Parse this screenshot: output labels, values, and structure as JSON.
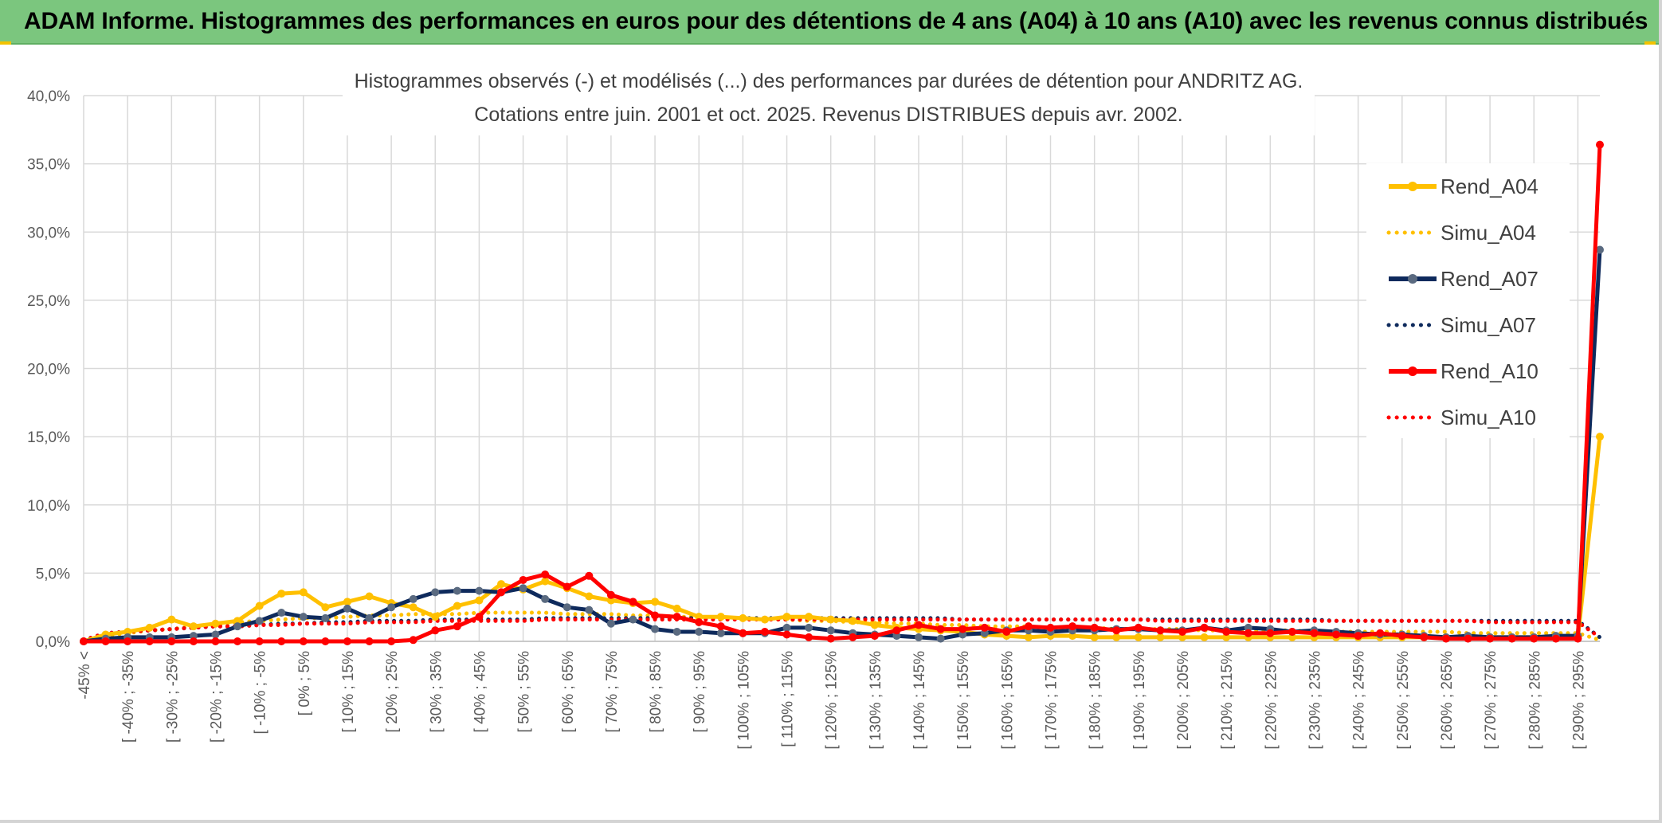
{
  "banner": {
    "title": "ADAM Informe. Histogrammes des performances en euros pour des détentions de 4 ans (A04) à 10 ans (A10) avec les revenus connus distribués"
  },
  "colors": {
    "banner_bg": "#7bc67e",
    "A04": "#ffc000",
    "A07": "#0e2a5c",
    "A07_marker": "#5a6a80",
    "A10": "#ff0000"
  },
  "chart_data": {
    "type": "line",
    "title": "Histogrammes observés (-) et modélisés (...) des performances par durées de détention pour ANDRITZ AG.",
    "subtitle": "Cotations entre juin. 2001 et oct. 2025. Revenus DISTRIBUES depuis avr. 2002.",
    "xlabel": "",
    "ylabel": "",
    "ylim": [
      0,
      40
    ],
    "y_ticks": [
      "0,0%",
      "5,0%",
      "10,0%",
      "15,0%",
      "20,0%",
      "25,0%",
      "30,0%",
      "35,0%",
      "40,0%"
    ],
    "grid": true,
    "legend_position": "right",
    "x_labels": [
      "-45% <",
      "[ -40% ; -35%",
      "[ -30% ; -25%",
      "[ -20% ; -15%",
      "[ -10% ; -5%",
      "[ 0% ; 5%",
      "[ 10% ; 15%",
      "[ 20% ; 25%",
      "[ 30% ; 35%",
      "[ 40% ; 45%",
      "[ 50% ; 55%",
      "[ 60% ; 65%",
      "[ 70% ; 75%",
      "[ 80% ; 85%",
      "[ 90% ; 95%",
      "[ 100% ; 105%",
      "[ 110% ; 115%",
      "[ 120% ; 125%",
      "[ 130% ; 135%",
      "[ 140% ; 145%",
      "[ 150% ; 155%",
      "[ 160% ; 165%",
      "[ 170% ; 175%",
      "[ 180% ; 185%",
      "[ 190% ; 195%",
      "[ 200% ; 205%",
      "[ 210% ; 215%",
      "[ 220% ; 225%",
      "[ 230% ; 235%",
      "[ 240% ; 245%",
      "[ 250% ; 255%",
      "[ 260% ; 265%",
      "[ 270% ; 275%",
      "[ 280% ; 285%",
      "[ 290% ; 295%"
    ],
    "series": [
      {
        "name": "Rend_A04",
        "style": "solid",
        "values": [
          0,
          0.5,
          0.7,
          1.0,
          1.6,
          1.1,
          1.3,
          1.5,
          2.6,
          3.5,
          3.6,
          2.5,
          2.9,
          3.3,
          2.8,
          2.5,
          1.8,
          2.6,
          3.0,
          4.2,
          3.8,
          4.4,
          3.9,
          3.3,
          3.0,
          2.8,
          2.9,
          2.4,
          1.8,
          1.8,
          1.7,
          1.6,
          1.8,
          1.8,
          1.6,
          1.5,
          1.2,
          1.0,
          0.9,
          0.8,
          0.7,
          0.5,
          0.4,
          0.3,
          0.4,
          0.4,
          0.3,
          0.3,
          0.3,
          0.3,
          0.3,
          0.3,
          0.3,
          0.3,
          0.3,
          0.3,
          0.3,
          0.3,
          0.3,
          0.3,
          0.3,
          0.3,
          0.3,
          0.3,
          0.3,
          0.3,
          0.3,
          0.3,
          0.3,
          15.0
        ]
      },
      {
        "name": "Simu_A04",
        "style": "dotted",
        "values": [
          0.1,
          0.4,
          0.6,
          0.8,
          0.9,
          1.1,
          1.2,
          1.4,
          1.5,
          1.6,
          1.7,
          1.7,
          1.8,
          1.9,
          1.9,
          2.0,
          2.0,
          2.0,
          2.1,
          2.1,
          2.1,
          2.1,
          2.0,
          2.0,
          2.0,
          1.9,
          1.9,
          1.8,
          1.8,
          1.7,
          1.7,
          1.6,
          1.6,
          1.5,
          1.5,
          1.4,
          1.4,
          1.3,
          1.3,
          1.2,
          1.2,
          1.1,
          1.1,
          1.1,
          1.0,
          1.0,
          1.0,
          0.9,
          0.9,
          0.9,
          0.9,
          0.8,
          0.8,
          0.8,
          0.8,
          0.8,
          0.7,
          0.7,
          0.7,
          0.7,
          0.7,
          0.7,
          0.7,
          0.6,
          0.6,
          0.6,
          0.6,
          0.6,
          0.6,
          0.1
        ]
      },
      {
        "name": "Rend_A07",
        "style": "solid",
        "values": [
          0,
          0.2,
          0.3,
          0.3,
          0.3,
          0.4,
          0.5,
          1.1,
          1.5,
          2.1,
          1.8,
          1.7,
          2.4,
          1.7,
          2.5,
          3.1,
          3.6,
          3.7,
          3.7,
          3.6,
          3.9,
          3.1,
          2.5,
          2.3,
          1.3,
          1.6,
          0.9,
          0.7,
          0.7,
          0.6,
          0.6,
          0.6,
          1.0,
          1.0,
          0.8,
          0.6,
          0.5,
          0.4,
          0.3,
          0.2,
          0.5,
          0.6,
          0.8,
          0.8,
          0.7,
          0.8,
          0.8,
          0.9,
          0.9,
          0.8,
          0.8,
          1.0,
          0.8,
          1.0,
          0.9,
          0.7,
          0.8,
          0.7,
          0.6,
          0.5,
          0.5,
          0.4,
          0.3,
          0.4,
          0.3,
          0.3,
          0.3,
          0.4,
          0.4,
          28.7
        ]
      },
      {
        "name": "Simu_A07",
        "style": "dotted",
        "values": [
          0.1,
          0.6,
          0.7,
          0.8,
          0.9,
          1.0,
          1.1,
          1.1,
          1.2,
          1.3,
          1.3,
          1.4,
          1.4,
          1.5,
          1.5,
          1.5,
          1.6,
          1.6,
          1.6,
          1.6,
          1.6,
          1.7,
          1.7,
          1.7,
          1.7,
          1.7,
          1.7,
          1.7,
          1.7,
          1.7,
          1.7,
          1.7,
          1.7,
          1.7,
          1.7,
          1.7,
          1.7,
          1.7,
          1.7,
          1.7,
          1.6,
          1.6,
          1.6,
          1.6,
          1.6,
          1.6,
          1.6,
          1.6,
          1.6,
          1.6,
          1.6,
          1.6,
          1.6,
          1.6,
          1.6,
          1.6,
          1.6,
          1.5,
          1.5,
          1.5,
          1.5,
          1.5,
          1.5,
          1.5,
          1.5,
          1.5,
          1.5,
          1.5,
          1.5,
          0.3
        ]
      },
      {
        "name": "Rend_A10",
        "style": "solid",
        "values": [
          0,
          0,
          0,
          0,
          0,
          0,
          0,
          0,
          0,
          0,
          0,
          0,
          0,
          0,
          0,
          0.1,
          0.8,
          1.1,
          1.8,
          3.6,
          4.5,
          4.9,
          4.0,
          4.8,
          3.4,
          2.9,
          1.9,
          1.8,
          1.4,
          1.1,
          0.6,
          0.7,
          0.5,
          0.3,
          0.2,
          0.3,
          0.4,
          0.8,
          1.2,
          0.9,
          0.9,
          1.0,
          0.7,
          1.1,
          1.0,
          1.1,
          1.0,
          0.8,
          1.0,
          0.8,
          0.7,
          1.0,
          0.7,
          0.6,
          0.6,
          0.7,
          0.6,
          0.5,
          0.4,
          0.6,
          0.4,
          0.3,
          0.2,
          0.2,
          0.2,
          0.2,
          0.2,
          0.2,
          0.2,
          36.4
        ]
      },
      {
        "name": "Simu_A10",
        "style": "dotted",
        "values": [
          0.1,
          0.6,
          0.7,
          0.8,
          0.9,
          1.0,
          1.1,
          1.1,
          1.2,
          1.2,
          1.3,
          1.3,
          1.3,
          1.4,
          1.4,
          1.4,
          1.5,
          1.5,
          1.5,
          1.5,
          1.5,
          1.6,
          1.6,
          1.6,
          1.6,
          1.6,
          1.6,
          1.6,
          1.6,
          1.6,
          1.6,
          1.6,
          1.6,
          1.6,
          1.6,
          1.6,
          1.6,
          1.6,
          1.6,
          1.6,
          1.6,
          1.6,
          1.6,
          1.6,
          1.6,
          1.6,
          1.6,
          1.6,
          1.6,
          1.5,
          1.5,
          1.5,
          1.5,
          1.5,
          1.5,
          1.5,
          1.5,
          1.5,
          1.5,
          1.5,
          1.5,
          1.5,
          1.5,
          1.5,
          1.4,
          1.4,
          1.4,
          1.4,
          1.4,
          0.3
        ]
      }
    ]
  }
}
